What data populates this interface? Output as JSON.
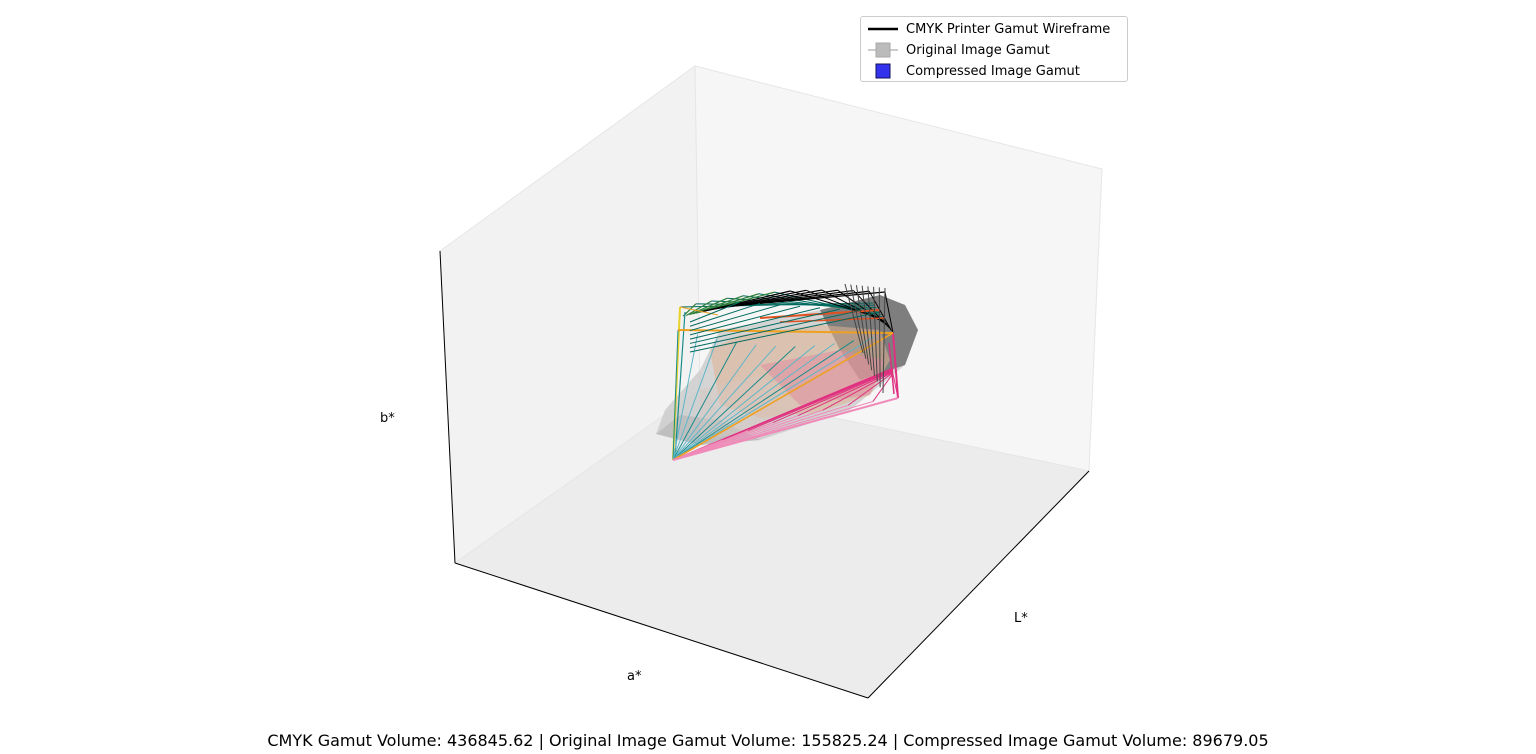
{
  "chart_data": {
    "type": "3d-surface",
    "axes": {
      "xlabel": "L*",
      "ylabel": "a*",
      "zlabel": "b*"
    },
    "grid": false,
    "legend_position": "top-right",
    "legend": [
      {
        "label": "CMYK Printer Gamut Wireframe",
        "kind": "line",
        "color": "#000000"
      },
      {
        "label": "Original Image Gamut",
        "kind": "patch",
        "color": "#bbbbbb"
      },
      {
        "label": "Compressed Image Gamut",
        "kind": "patch",
        "color": "#3333ee"
      }
    ],
    "series": [
      {
        "name": "CMYK Printer Gamut Wireframe",
        "volume": 436845.62
      },
      {
        "name": "Original Image Gamut",
        "volume": 155825.24
      },
      {
        "name": "Compressed Image Gamut",
        "volume": 89679.05
      }
    ],
    "wireframe_colors": [
      "#000000",
      "#006a5e",
      "#1a8b8b",
      "#5fb6c8",
      "#e8d22a",
      "#f0a020",
      "#e05020",
      "#e03080",
      "#f08ab8",
      "#2f7f3a"
    ]
  },
  "footer_text": "CMYK Gamut Volume: 436845.62 | Original Image Gamut Volume: 155825.24 | Compressed Image Gamut Volume: 89679.05"
}
